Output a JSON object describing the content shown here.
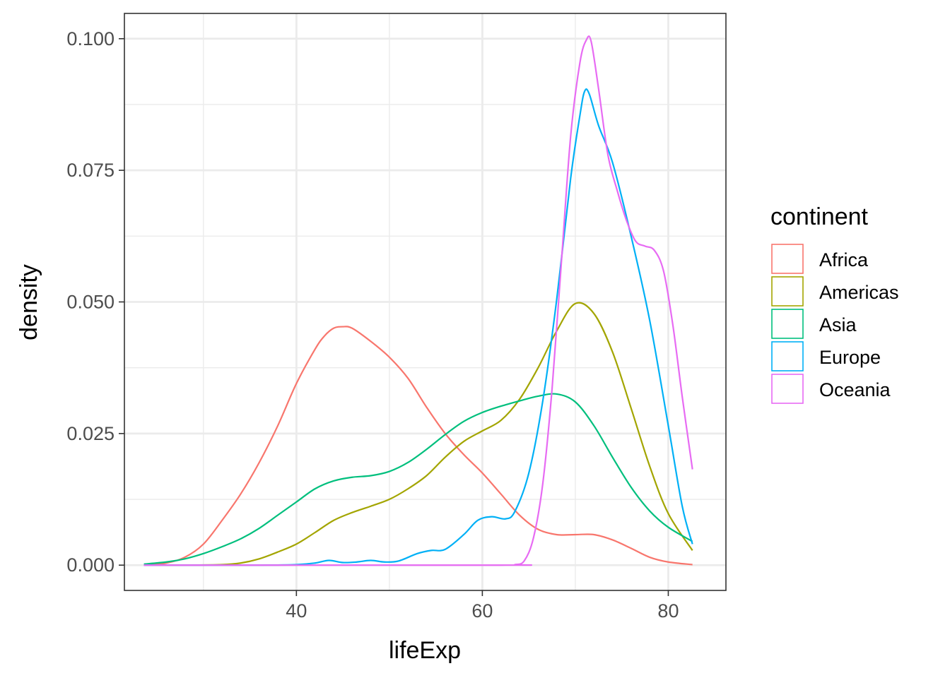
{
  "chart_data": {
    "type": "line",
    "subtype": "density",
    "title": "",
    "xlabel": "lifeExp",
    "ylabel": "density",
    "xlim": [
      21.5,
      86.2
    ],
    "ylim": [
      -0.0048,
      0.1048
    ],
    "x_ticks": [
      40,
      60,
      80
    ],
    "x_tick_labels": [
      "40",
      "60",
      "80"
    ],
    "y_ticks": [
      0.0,
      0.025,
      0.05,
      0.075,
      0.1
    ],
    "y_tick_labels": [
      "0.000",
      "0.025",
      "0.050",
      "0.075",
      "0.100"
    ],
    "grid": true,
    "legend": {
      "title": "continent",
      "position": "right"
    },
    "series": [
      {
        "name": "Africa",
        "color": "#F8766D",
        "x": [
          23.6,
          26,
          28,
          30,
          32,
          34,
          36,
          38,
          40,
          42,
          43,
          44,
          45,
          46,
          48,
          50,
          52,
          54,
          56,
          58,
          60,
          62,
          64,
          66,
          68,
          70,
          72,
          74,
          76,
          78,
          80,
          82.6
        ],
        "y": [
          0.0,
          0.0004,
          0.0015,
          0.004,
          0.0085,
          0.0135,
          0.0195,
          0.0265,
          0.0345,
          0.041,
          0.0435,
          0.045,
          0.0453,
          0.045,
          0.0425,
          0.0395,
          0.0355,
          0.03,
          0.025,
          0.021,
          0.0175,
          0.0135,
          0.0095,
          0.0068,
          0.0058,
          0.0058,
          0.0058,
          0.0048,
          0.0032,
          0.0015,
          0.0006,
          0.0001
        ]
      },
      {
        "name": "Americas",
        "color": "#A3A500",
        "x": [
          23.6,
          28,
          32,
          34,
          36,
          38,
          40,
          42,
          44,
          46,
          48,
          50,
          52,
          54,
          56,
          58,
          60,
          62,
          64,
          66,
          68,
          70,
          72,
          74,
          76,
          78,
          80,
          82.6
        ],
        "y": [
          0.0,
          0.0,
          0.0001,
          0.0004,
          0.0012,
          0.0025,
          0.004,
          0.0062,
          0.0085,
          0.01,
          0.0112,
          0.0125,
          0.0145,
          0.017,
          0.0205,
          0.0235,
          0.0255,
          0.0275,
          0.0315,
          0.0375,
          0.0445,
          0.0497,
          0.0478,
          0.0405,
          0.0298,
          0.0188,
          0.0098,
          0.0028
        ]
      },
      {
        "name": "Asia",
        "color": "#00BF7D",
        "x": [
          23.6,
          26,
          28,
          30,
          32,
          34,
          36,
          38,
          40,
          42,
          44,
          46,
          48,
          50,
          52,
          54,
          56,
          58,
          60,
          62,
          64,
          66,
          68,
          70,
          72,
          74,
          76,
          78,
          80,
          82.6
        ],
        "y": [
          0.0002,
          0.0006,
          0.0012,
          0.0022,
          0.0035,
          0.005,
          0.007,
          0.0095,
          0.012,
          0.0145,
          0.016,
          0.0167,
          0.017,
          0.0178,
          0.0195,
          0.022,
          0.0248,
          0.0273,
          0.029,
          0.0302,
          0.0312,
          0.0321,
          0.0325,
          0.031,
          0.0265,
          0.0205,
          0.0148,
          0.0103,
          0.0072,
          0.0045
        ]
      },
      {
        "name": "Europe",
        "color": "#00B0F6",
        "x": [
          23.6,
          36,
          40,
          42,
          43.5,
          45,
          46.5,
          48,
          49.5,
          51,
          53,
          54.5,
          56,
          58,
          59.5,
          61,
          62.5,
          63.5,
          65,
          66.5,
          68,
          69.5,
          70.5,
          71,
          71.5,
          72.5,
          74,
          76,
          78,
          80,
          81.5,
          82.6
        ],
        "y": [
          0.0,
          0.0,
          0.0001,
          0.0004,
          0.0009,
          0.0005,
          0.0006,
          0.0009,
          0.0006,
          0.0008,
          0.0022,
          0.0028,
          0.003,
          0.0058,
          0.0085,
          0.0092,
          0.0088,
          0.0102,
          0.0175,
          0.0312,
          0.0505,
          0.0735,
          0.0855,
          0.09,
          0.0895,
          0.0835,
          0.0765,
          0.0625,
          0.0465,
          0.0265,
          0.0112,
          0.004
        ]
      },
      {
        "name": "Oceania",
        "color": "#E76BF3",
        "x": [
          23.6,
          62,
          63.5,
          64.5,
          65.5,
          66.5,
          67.5,
          68.5,
          69.5,
          70.5,
          71.2,
          71.7,
          72.5,
          73.5,
          74.5,
          75.5,
          76.5,
          77.5,
          78.5,
          79.5,
          80.5,
          81.5,
          82.6
        ],
        "y": [
          0.0,
          0.0,
          0.0001,
          0.0008,
          0.0052,
          0.0155,
          0.0335,
          0.0575,
          0.0815,
          0.0955,
          0.0998,
          0.0995,
          0.0905,
          0.078,
          0.0712,
          0.0655,
          0.0615,
          0.0606,
          0.0598,
          0.0558,
          0.0455,
          0.032,
          0.0182
        ]
      }
    ]
  }
}
